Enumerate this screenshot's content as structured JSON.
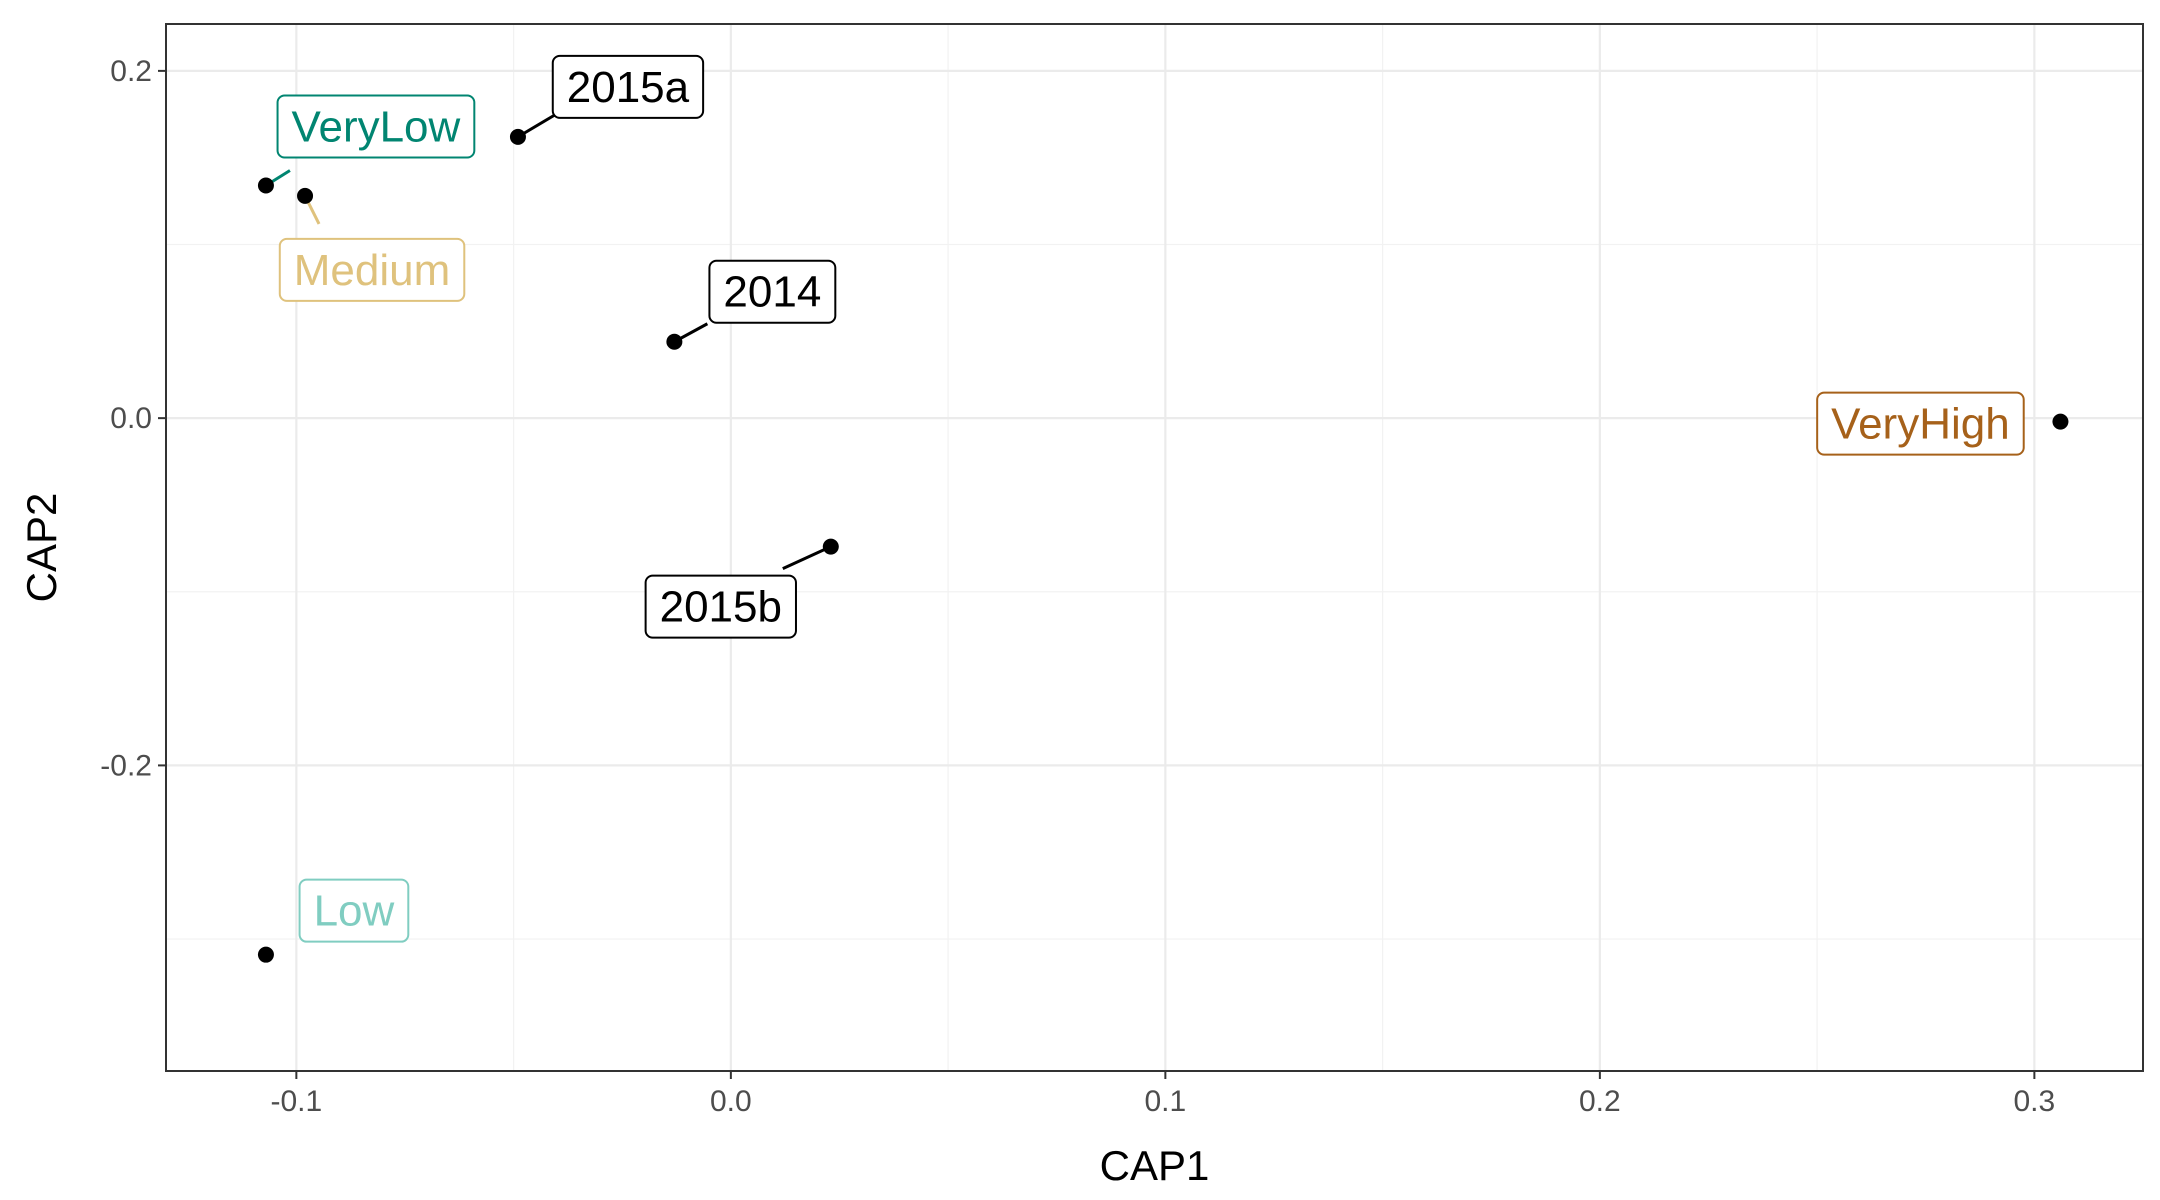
{
  "chart_data": {
    "type": "scatter",
    "xlabel": "CAP1",
    "ylabel": "CAP2",
    "xlim": [
      -0.13,
      0.325
    ],
    "ylim": [
      -0.376,
      0.227
    ],
    "x_ticks": [
      -0.1,
      0.0,
      0.1,
      0.2,
      0.3
    ],
    "x_tick_labels": [
      "-0.1",
      "0.0",
      "0.1",
      "0.2",
      "0.3"
    ],
    "y_ticks": [
      -0.2,
      0.0,
      0.2
    ],
    "y_tick_labels": [
      "-0.2",
      "0.0",
      "0.2"
    ],
    "grid": true,
    "points": [
      {
        "label": "2015a",
        "x": -0.049,
        "y": 0.162,
        "color": "#000000"
      },
      {
        "label": "VeryLow",
        "x": -0.107,
        "y": 0.134,
        "color": "#018571"
      },
      {
        "label": "Medium",
        "x": -0.098,
        "y": 0.128,
        "color": "#dfc27d"
      },
      {
        "label": "2014",
        "x": -0.013,
        "y": 0.044,
        "color": "#000000"
      },
      {
        "label": "VeryHigh",
        "x": 0.306,
        "y": -0.002,
        "color": "#a6611a"
      },
      {
        "label": "2015b",
        "x": 0.023,
        "y": -0.074,
        "color": "#000000"
      },
      {
        "label": "Low",
        "x": -0.107,
        "y": -0.309,
        "color": "#80cdc1"
      }
    ]
  }
}
